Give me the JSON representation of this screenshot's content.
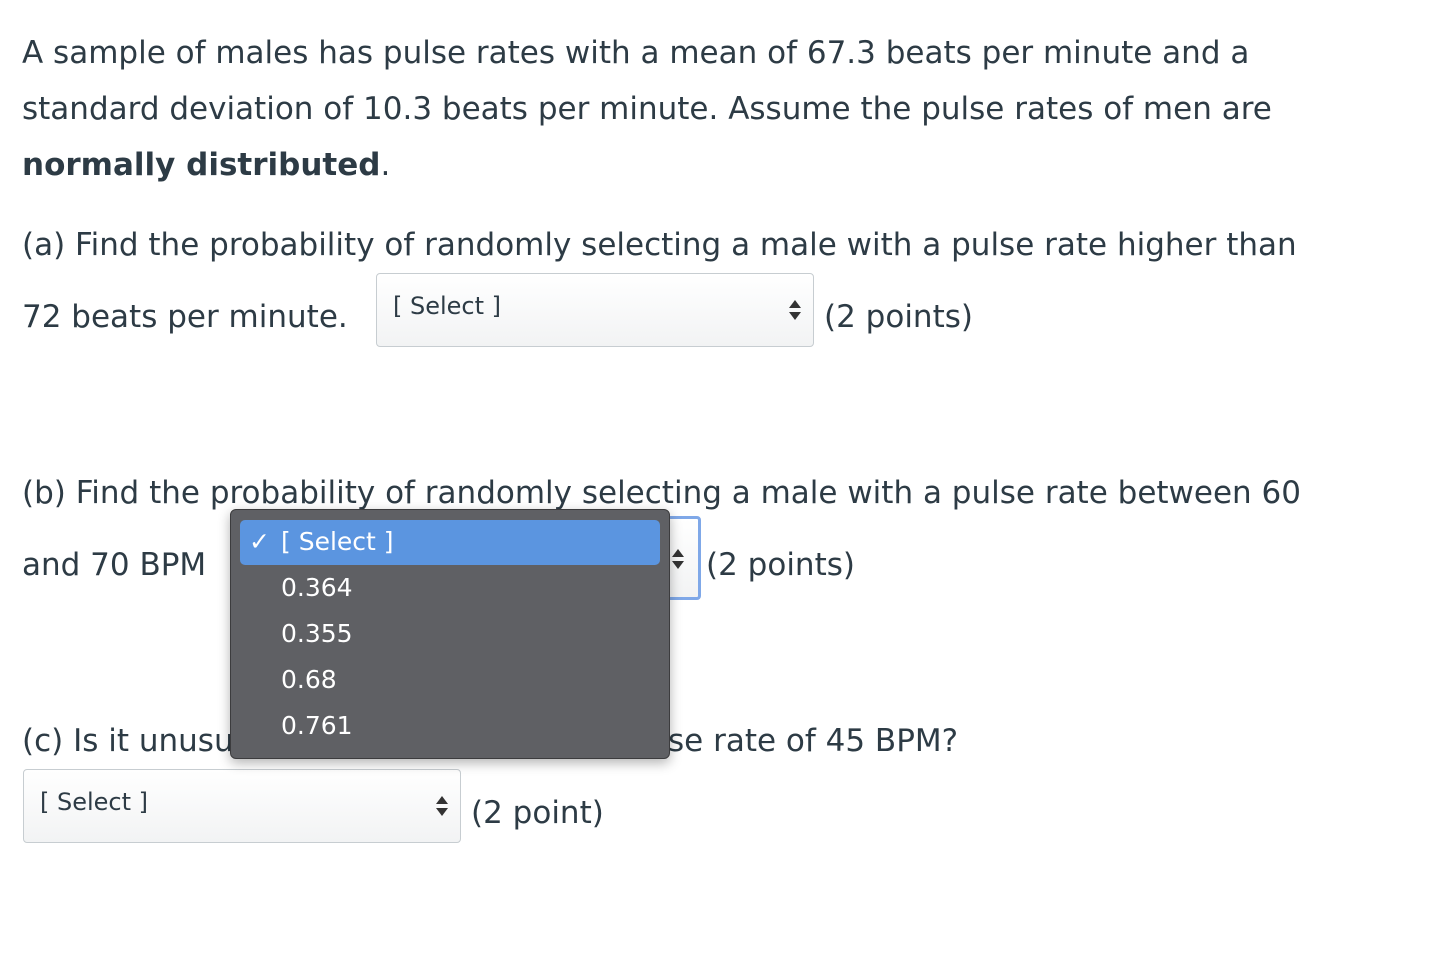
{
  "intro": {
    "lines": [
      "A sample of males has pulse rates with a mean of 67.3 beats per minute and a",
      "standard deviation of 10.3 beats per minute. Assume the pulse rates of men are"
    ],
    "bold": "normally distributed",
    "end": "."
  },
  "part_a": {
    "lines": [
      "(a) Find the probability of randomly selecting a male with a pulse rate higher than",
      "72 beats per minute."
    ],
    "select": "[ Select ]",
    "points": "(2 points)"
  },
  "part_b": {
    "lines": [
      "(b) Find the probability of randomly selecting a male with a pulse rate between 60",
      "and 70 BPM"
    ],
    "points": "(2 points)"
  },
  "part_c": {
    "start": "(c) Is it unusu",
    "end": "se rate of 45 BPM?",
    "select": "[ Select ]",
    "points": "(2 point)"
  },
  "dropdown": {
    "check": "✓",
    "options": [
      "[ Select ]",
      "0.364",
      "0.355",
      "0.68",
      "0.761"
    ]
  }
}
